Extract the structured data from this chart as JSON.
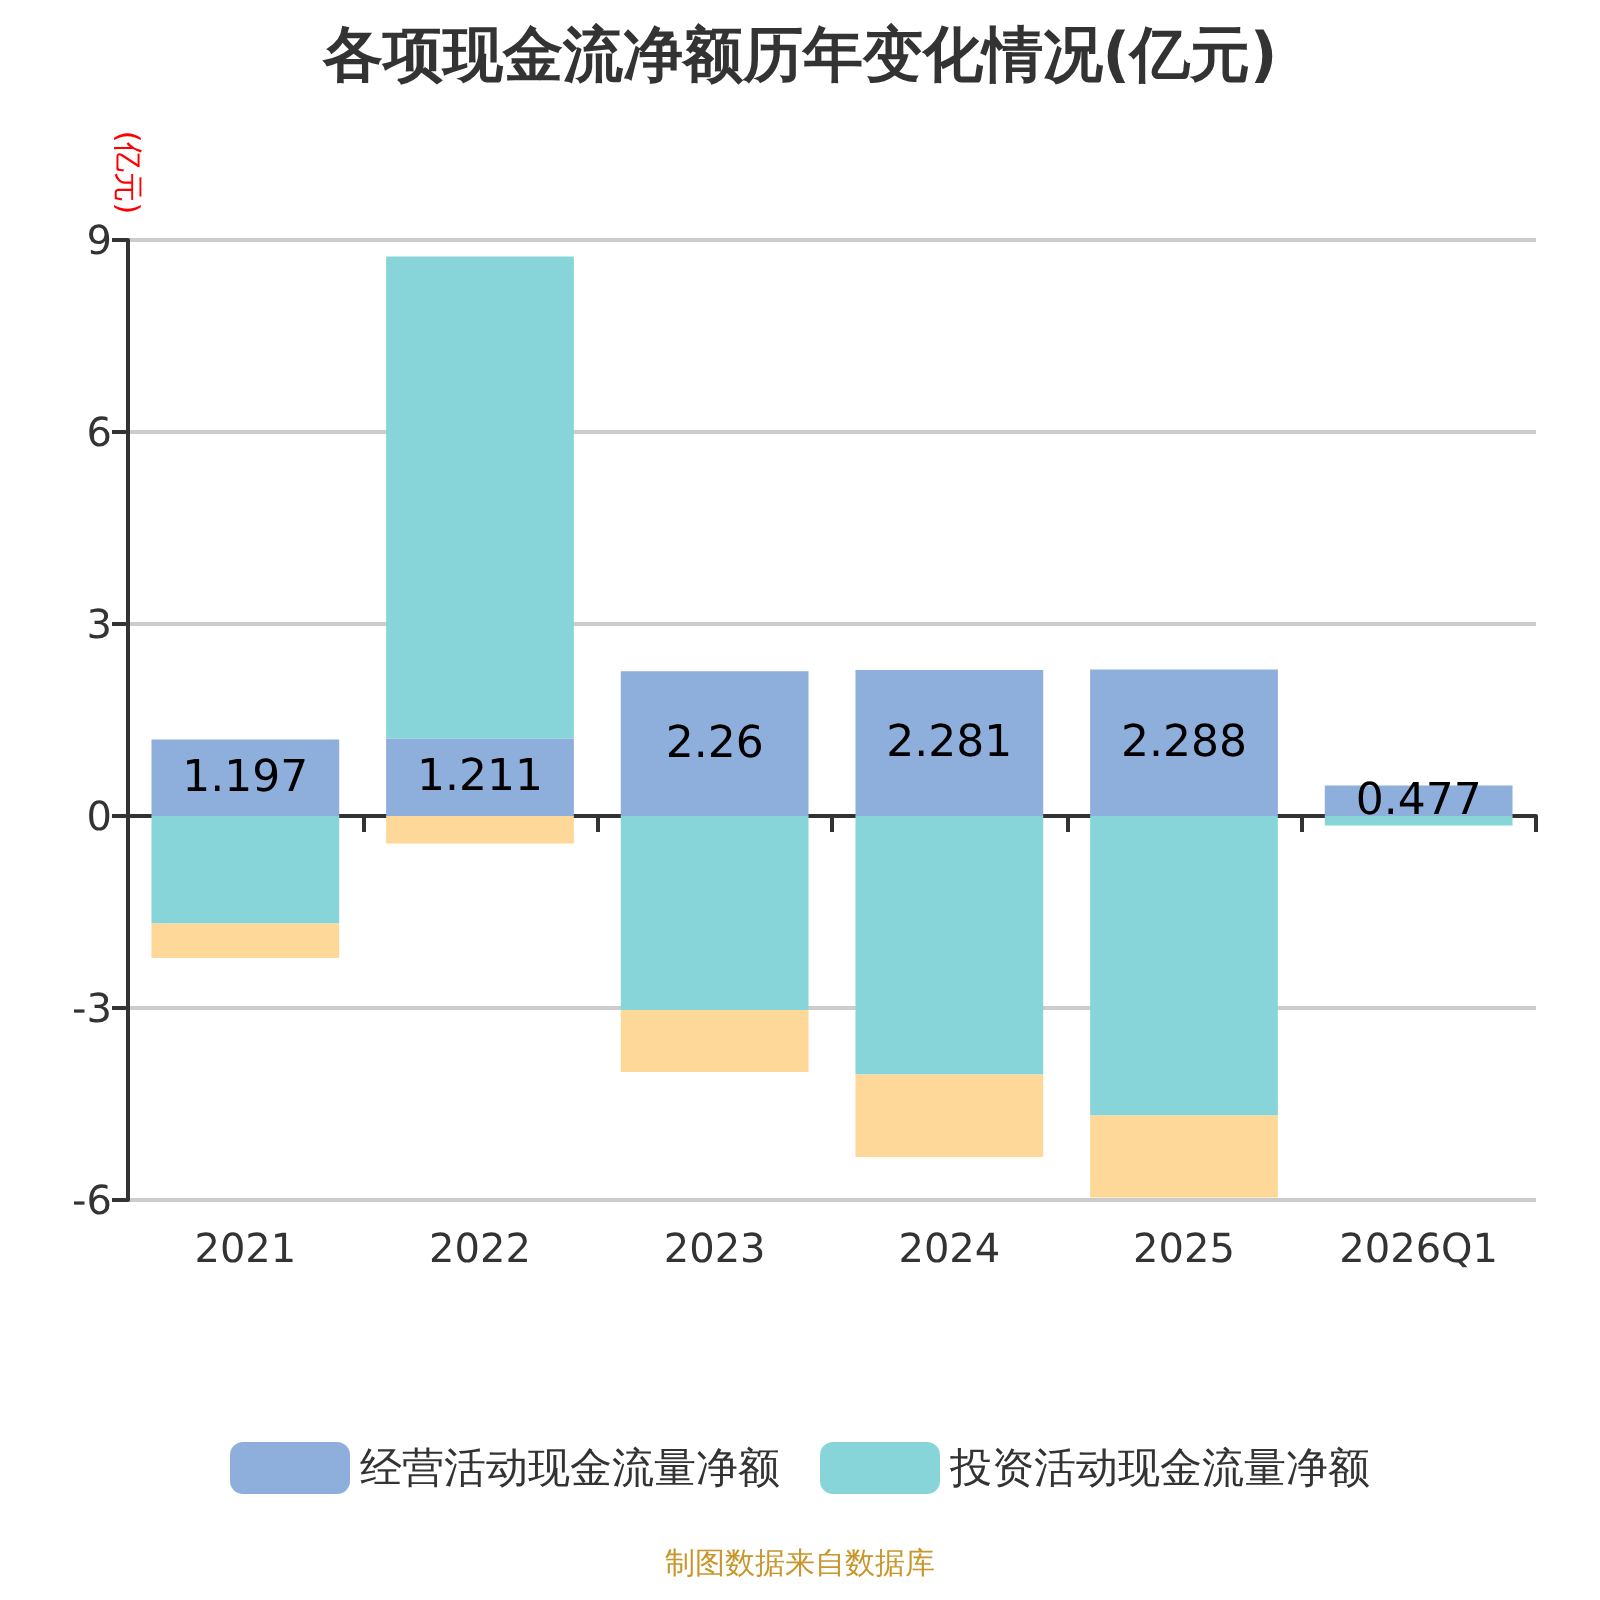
{
  "chart_data": {
    "type": "bar",
    "title": "各项现金流净额历年变化情况(亿元)",
    "ylabel": "(亿元)",
    "categories": [
      "2021",
      "2022",
      "2023",
      "2024",
      "2025",
      "2026Q1"
    ],
    "series": [
      {
        "name": "经营活动现金流量净额",
        "color": "#8eaedb",
        "values": [
          1.197,
          1.211,
          2.26,
          2.281,
          2.288,
          0.477
        ],
        "value_labels": [
          "1.197",
          "1.211",
          "2.26",
          "2.281",
          "2.288",
          "0.477"
        ]
      },
      {
        "name": "投资活动现金流量净额",
        "color": "#87d5d8",
        "values": [
          -1.68,
          7.53,
          -3.03,
          -4.04,
          -4.68,
          -0.15
        ]
      },
      {
        "color": "#fed899",
        "values": [
          -0.54,
          -0.43,
          -0.97,
          -1.29,
          -1.28,
          0
        ]
      }
    ],
    "stacked": true,
    "ylim": [
      -6,
      9
    ],
    "yticks": [
      -6,
      -3,
      0,
      3,
      6,
      9
    ],
    "grid": "y",
    "legend": "bottom",
    "annotations": [
      "制图数据来自数据库"
    ]
  }
}
